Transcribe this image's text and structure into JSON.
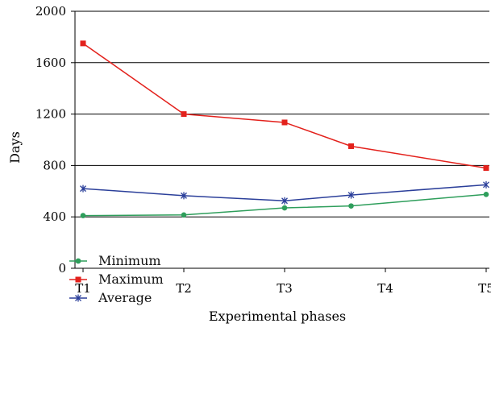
{
  "chart_data": {
    "type": "line",
    "title": "",
    "xlabel": "Experimental phases",
    "ylabel": "Days",
    "categories": [
      "T1",
      "T2",
      "T3",
      "T4",
      "T5"
    ],
    "ylim": [
      0,
      2000
    ],
    "yticks": [
      0,
      400,
      800,
      1200,
      1600,
      2000
    ],
    "grid": true,
    "legend_position": "bottom-left",
    "series": [
      {
        "name": "Minimum",
        "color": "#2e9e5b",
        "marker": "circle",
        "x": [
          0,
          1,
          2,
          2.66,
          4
        ],
        "values": [
          410,
          415,
          470,
          485,
          575
        ]
      },
      {
        "name": "Maximum",
        "color": "#e3211c",
        "marker": "square",
        "x": [
          0,
          1,
          2,
          2.66,
          4
        ],
        "values": [
          1750,
          1200,
          1135,
          950,
          780
        ]
      },
      {
        "name": "Average",
        "color": "#2b3f9a",
        "marker": "star",
        "x": [
          0,
          1,
          2,
          2.66,
          4
        ],
        "values": [
          620,
          565,
          525,
          570,
          650
        ]
      }
    ]
  }
}
